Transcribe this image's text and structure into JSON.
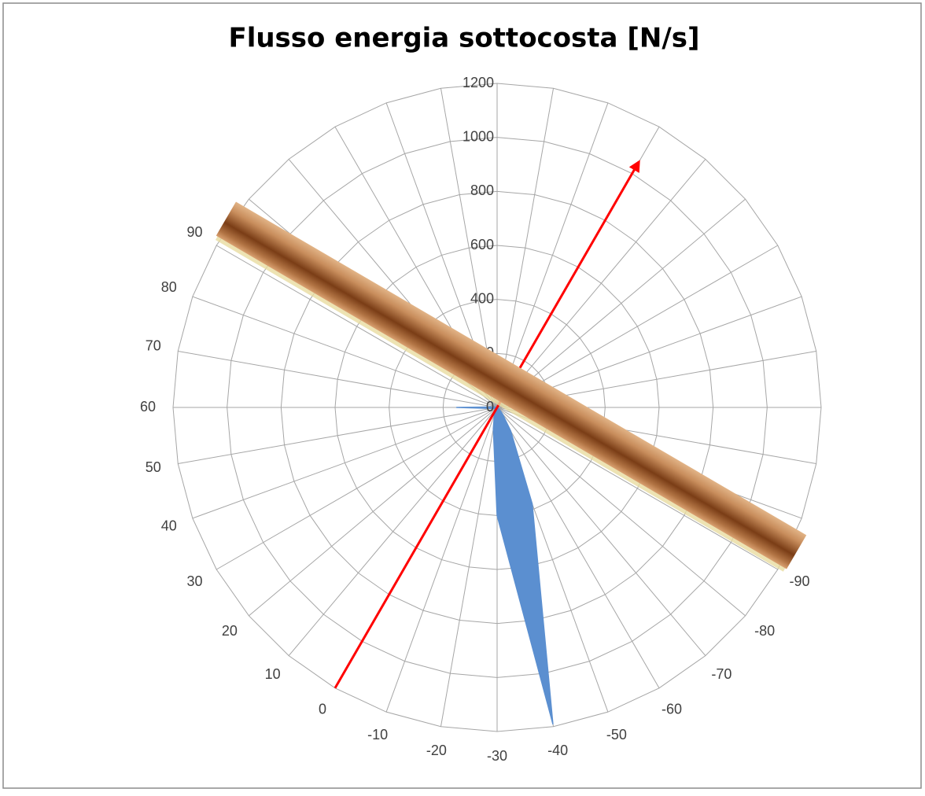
{
  "chart_data": {
    "type": "radar",
    "title": "Flusso energia sottocosta [N/s]",
    "categories": [
      null,
      null,
      null,
      null,
      null,
      null,
      null,
      null,
      null,
      null,
      null,
      null,
      "-90",
      "-80",
      "-70",
      "-60",
      "-50",
      "-40",
      "-30",
      "-20",
      "-10",
      "0",
      "10",
      "20",
      "30",
      "40",
      "50",
      "60",
      "70",
      "80",
      "90",
      null,
      null,
      null,
      null,
      null
    ],
    "series": [
      {
        "color": "#5b8fd0",
        "fill": true,
        "values": [
          null,
          null,
          null,
          null,
          null,
          null,
          null,
          null,
          null,
          null,
          null,
          null,
          0,
          10,
          30,
          100,
          380,
          1190,
          400,
          80,
          30,
          10,
          5,
          5,
          5,
          10,
          20,
          150,
          10,
          0,
          0,
          null,
          null,
          null,
          null,
          null
        ]
      },
      {
        "color": "#ff0000",
        "fill": false,
        "values": [
          null,
          null,
          null,
          1050,
          null,
          null,
          null,
          null,
          null,
          null,
          null,
          null,
          null,
          null,
          null,
          null,
          null,
          null,
          null,
          null,
          null,
          1200,
          null,
          null,
          null,
          null,
          null,
          null,
          null,
          null,
          null,
          null,
          null,
          null,
          null,
          null
        ]
      }
    ],
    "ylim": [
      0,
      1200
    ],
    "yticks": [
      0,
      200,
      400,
      600,
      800,
      1000,
      1200
    ],
    "grid": true
  }
}
